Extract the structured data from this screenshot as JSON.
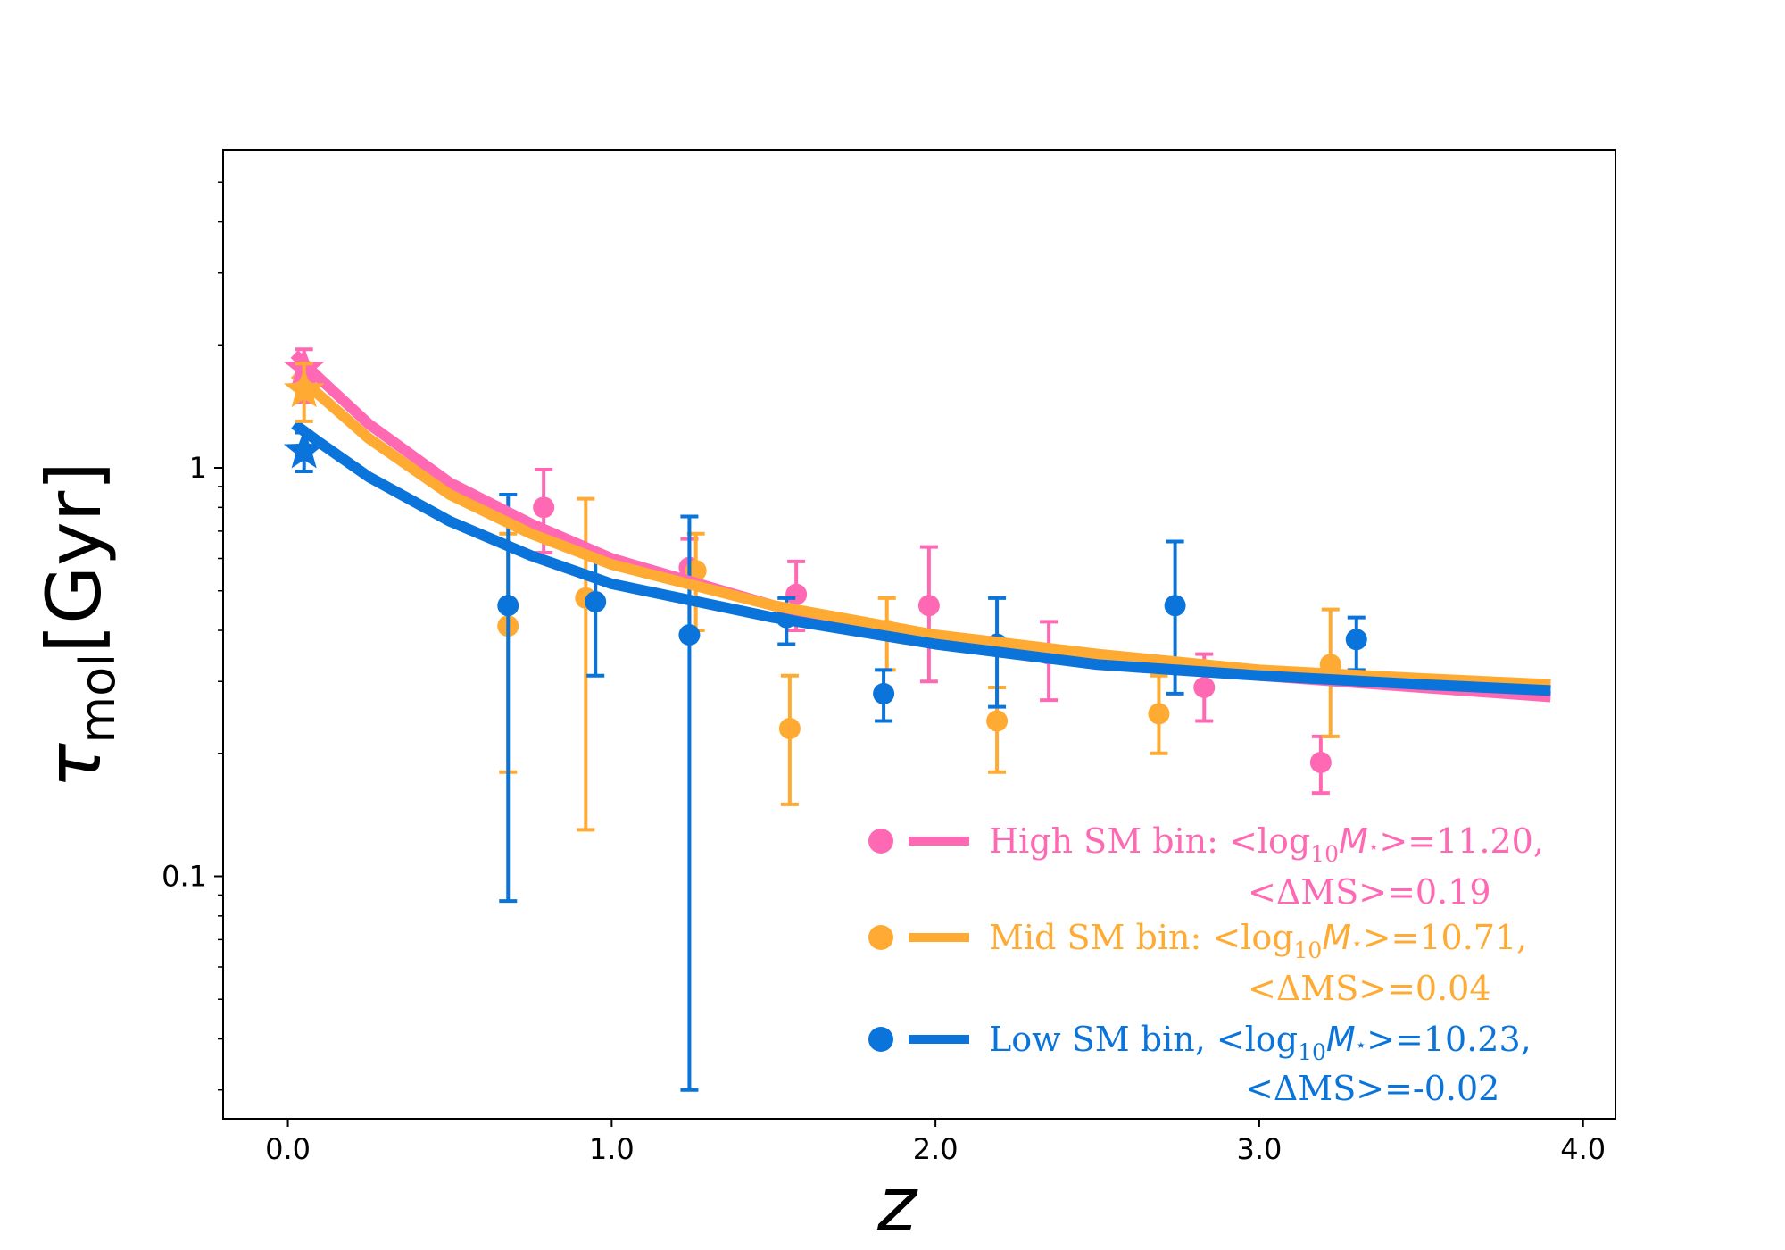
{
  "chart_data": {
    "type": "scatter",
    "title": "",
    "xlabel": "z",
    "ylabel": "τ_mol [Gyr]",
    "ylabel_main": "τ",
    "ylabel_sub": "mol",
    "ylabel_unit": "[Gyr]",
    "xscale": "linear",
    "yscale": "log",
    "xlim": [
      -0.2,
      4.1
    ],
    "ylim": [
      0.0255,
      6.0
    ],
    "xticks": [
      0.0,
      1.0,
      2.0,
      3.0,
      4.0
    ],
    "xtick_labels": [
      "0.0",
      "1.0",
      "2.0",
      "3.0",
      "4.0"
    ],
    "yticks": [
      0.1,
      1
    ],
    "ytick_labels": [
      "0.1",
      "1"
    ],
    "legend_position": "lower-right",
    "series": [
      {
        "name": "High SM bin",
        "color": "#ff69b4",
        "legend": {
          "line1_prefix": "High SM bin: <log",
          "line1_sub": "10",
          "line1_mass": "M",
          "line1_star": "⋆",
          "line1_suffix": ">=11.20,",
          "line2": "<ΔMS>=0.19"
        },
        "z0_point": {
          "x": 0.05,
          "y": 1.75,
          "lo": 1.45,
          "hi": 1.95
        },
        "points": [
          {
            "x": 0.79,
            "y": 0.8,
            "lo": 0.62,
            "hi": 0.99
          },
          {
            "x": 1.24,
            "y": 0.57,
            "lo": 0.4,
            "hi": 0.67
          },
          {
            "x": 1.57,
            "y": 0.49,
            "lo": 0.4,
            "hi": 0.59
          },
          {
            "x": 1.98,
            "y": 0.46,
            "lo": 0.3,
            "hi": 0.64
          },
          {
            "x": 2.35,
            "y": 0.35,
            "lo": 0.27,
            "hi": 0.42
          },
          {
            "x": 2.83,
            "y": 0.29,
            "lo": 0.24,
            "hi": 0.35
          },
          {
            "x": 3.19,
            "y": 0.19,
            "lo": 0.16,
            "hi": 0.22
          }
        ],
        "fit": {
          "z": [
            0.02,
            0.1,
            0.25,
            0.5,
            0.75,
            1.0,
            1.5,
            2.0,
            2.5,
            3.0,
            3.5,
            3.9
          ],
          "y": [
            1.9,
            1.65,
            1.28,
            0.92,
            0.73,
            0.6,
            0.46,
            0.38,
            0.34,
            0.31,
            0.29,
            0.275
          ]
        }
      },
      {
        "name": "Mid SM bin",
        "color": "#ffaa33",
        "legend": {
          "line1_prefix": "Mid SM bin: <log",
          "line1_sub": "10",
          "line1_mass": "M",
          "line1_star": "⋆",
          "line1_suffix": ">=10.71,",
          "line2": "<ΔMS>=0.04"
        },
        "z0_point": {
          "x": 0.05,
          "y": 1.55,
          "lo": 1.3,
          "hi": 1.8
        },
        "points": [
          {
            "x": 0.68,
            "y": 0.41,
            "lo": 0.18,
            "hi": 0.69
          },
          {
            "x": 0.92,
            "y": 0.48,
            "lo": 0.13,
            "hi": 0.84
          },
          {
            "x": 1.26,
            "y": 0.56,
            "lo": 0.4,
            "hi": 0.69
          },
          {
            "x": 1.55,
            "y": 0.23,
            "lo": 0.15,
            "hi": 0.31
          },
          {
            "x": 1.85,
            "y": 0.4,
            "lo": 0.32,
            "hi": 0.48
          },
          {
            "x": 2.19,
            "y": 0.24,
            "lo": 0.18,
            "hi": 0.29
          },
          {
            "x": 2.69,
            "y": 0.25,
            "lo": 0.2,
            "hi": 0.31
          },
          {
            "x": 3.22,
            "y": 0.33,
            "lo": 0.22,
            "hi": 0.45
          }
        ],
        "fit": {
          "z": [
            0.02,
            0.1,
            0.25,
            0.5,
            0.75,
            1.0,
            1.5,
            2.0,
            2.5,
            3.0,
            3.5,
            3.9
          ],
          "y": [
            1.7,
            1.5,
            1.18,
            0.86,
            0.69,
            0.58,
            0.46,
            0.39,
            0.35,
            0.32,
            0.305,
            0.295
          ]
        }
      },
      {
        "name": "Low SM bin",
        "color": "#0a74da",
        "legend": {
          "line1_prefix": "Low SM bin, <log",
          "line1_sub": "10",
          "line1_mass": "M",
          "line1_star": "⋆",
          "line1_suffix": ">=10.23,",
          "line2": "<ΔMS>=-0.02"
        },
        "z0_point": {
          "x": 0.05,
          "y": 1.1,
          "lo": 0.98,
          "hi": 1.22
        },
        "points": [
          {
            "x": 0.68,
            "y": 0.46,
            "lo": 0.087,
            "hi": 0.86
          },
          {
            "x": 0.95,
            "y": 0.47,
            "lo": 0.31,
            "hi": 0.62
          },
          {
            "x": 1.24,
            "y": 0.39,
            "lo": 0.03,
            "hi": 0.76
          },
          {
            "x": 1.54,
            "y": 0.43,
            "lo": 0.37,
            "hi": 0.48
          },
          {
            "x": 1.84,
            "y": 0.28,
            "lo": 0.24,
            "hi": 0.32
          },
          {
            "x": 2.19,
            "y": 0.37,
            "lo": 0.26,
            "hi": 0.48
          },
          {
            "x": 2.74,
            "y": 0.46,
            "lo": 0.28,
            "hi": 0.66
          },
          {
            "x": 3.3,
            "y": 0.38,
            "lo": 0.32,
            "hi": 0.43
          }
        ],
        "fit": {
          "z": [
            0.02,
            0.1,
            0.25,
            0.5,
            0.75,
            1.0,
            1.5,
            2.0,
            2.5,
            3.0,
            3.5,
            3.9
          ],
          "y": [
            1.28,
            1.15,
            0.95,
            0.74,
            0.61,
            0.52,
            0.43,
            0.37,
            0.33,
            0.31,
            0.295,
            0.285
          ]
        }
      }
    ]
  }
}
